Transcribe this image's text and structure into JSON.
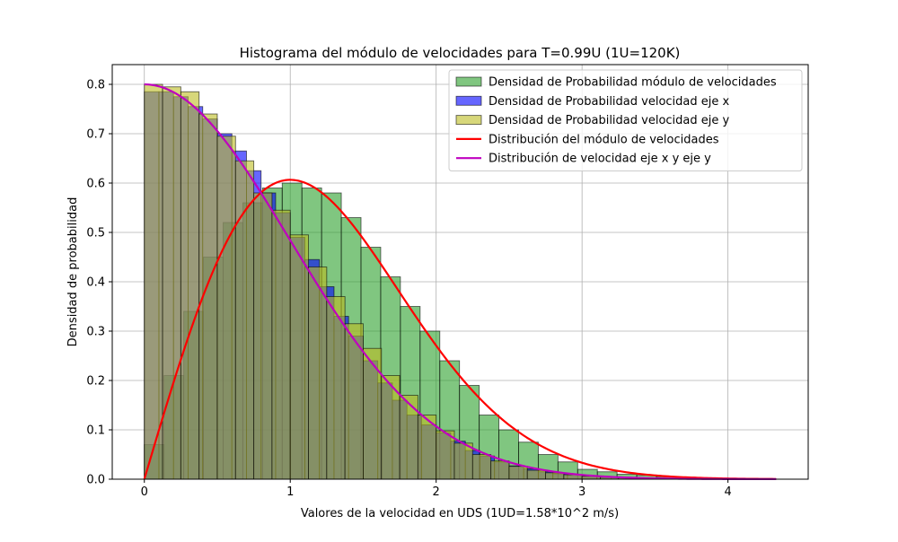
{
  "chart_data": {
    "type": "bar",
    "title": "Histograma del módulo de velocidades para T=0.99U (1U=120K)",
    "xlabel": "Valores de la velocidad en UDS (1UD=1.58*10^2 m/s)",
    "ylabel": "Densidad de probabilidad",
    "xlim": [
      -0.22,
      4.55
    ],
    "ylim": [
      0,
      0.84
    ],
    "grid": true,
    "legend_position": "upper-right",
    "x_ticks": [
      0,
      1,
      2,
      3,
      4
    ],
    "x_tick_labels": [
      "0",
      "1",
      "2",
      "3",
      "4"
    ],
    "y_ticks": [
      0,
      0.1,
      0.2,
      0.3,
      0.4,
      0.5,
      0.6,
      0.7,
      0.8
    ],
    "y_tick_labels": [
      "0.0",
      "0.1",
      "0.2",
      "0.3",
      "0.4",
      "0.5",
      "0.6",
      "0.7",
      "0.8"
    ],
    "histograms": [
      {
        "name": "Densidad de Probabilidad módulo de velocidades",
        "color": "#2ca02c",
        "bin_start": 0,
        "bin_width": 0.135,
        "values": [
          0.07,
          0.21,
          0.34,
          0.45,
          0.52,
          0.56,
          0.59,
          0.6,
          0.59,
          0.58,
          0.53,
          0.47,
          0.41,
          0.35,
          0.3,
          0.24,
          0.19,
          0.13,
          0.1,
          0.075,
          0.05,
          0.035,
          0.02,
          0.015,
          0.01,
          0.008,
          0.005,
          0.004,
          0.003,
          0.002,
          0.001
        ]
      },
      {
        "name": "Densidad de Probabilidad velocidad eje x",
        "color": "#0000ff",
        "bin_start": 0,
        "bin_width": 0.1,
        "values": [
          0.785,
          0.785,
          0.775,
          0.755,
          0.73,
          0.7,
          0.665,
          0.625,
          0.58,
          0.54,
          0.49,
          0.445,
          0.39,
          0.33,
          0.29,
          0.24,
          0.195,
          0.16,
          0.13,
          0.11,
          0.094,
          0.077,
          0.058,
          0.047,
          0.035,
          0.027,
          0.021,
          0.015,
          0.011,
          0.009,
          0.006,
          0.005,
          0.004,
          0.003,
          0.002
        ]
      },
      {
        "name": "Densidad de Probabilidad velocidad eje y",
        "color": "#bcbd22",
        "bin_start": 0,
        "bin_width": 0.125,
        "values": [
          0.8,
          0.795,
          0.785,
          0.74,
          0.695,
          0.645,
          0.58,
          0.545,
          0.495,
          0.43,
          0.37,
          0.315,
          0.265,
          0.21,
          0.17,
          0.13,
          0.098,
          0.073,
          0.05,
          0.037,
          0.026,
          0.018,
          0.013,
          0.009,
          0.006,
          0.004,
          0.003,
          0.002
        ]
      }
    ],
    "series": [
      {
        "name": "Distribución del módulo de velocidades",
        "color": "#ff0000",
        "kind": "maxwell-2d",
        "x_range": [
          0,
          4.33
        ],
        "peak_x": 1.0,
        "peak_y": 0.607
      },
      {
        "name": "Distribución de velocidad eje x y eje y",
        "color": "#bf00bf",
        "kind": "half-gaussian",
        "x_range": [
          0,
          4.33
        ],
        "y_at_zero": 0.8
      }
    ]
  }
}
